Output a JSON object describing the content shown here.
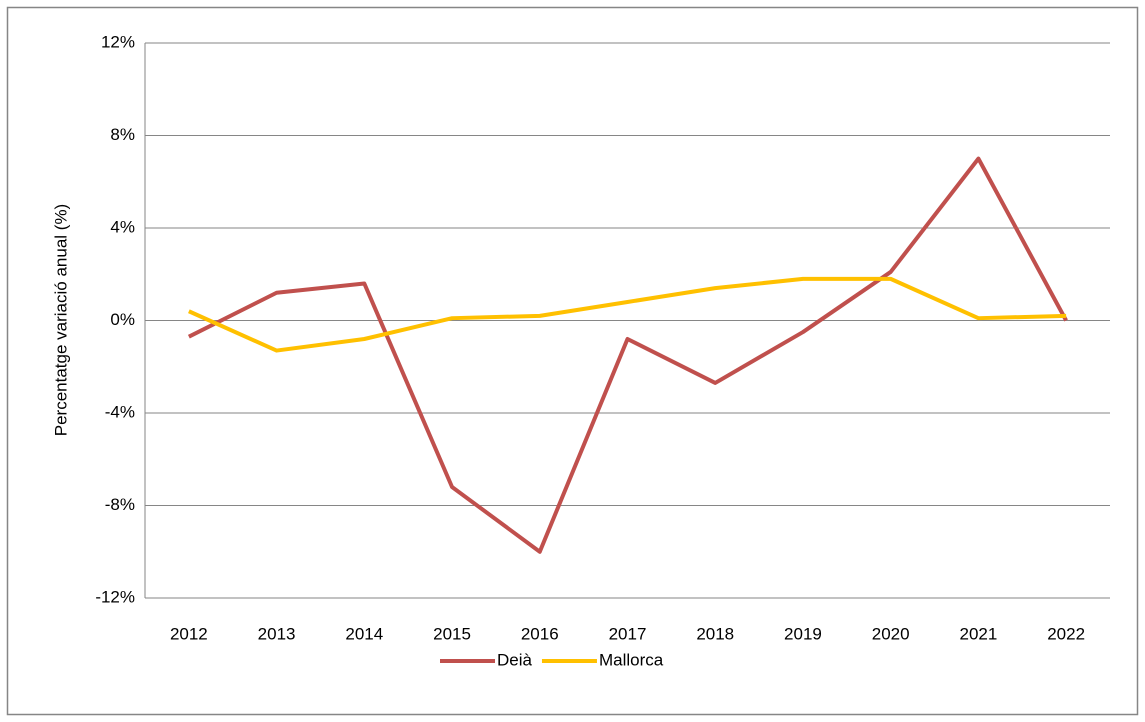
{
  "chart_data": {
    "type": "line",
    "y_label": "Percentatge variació anual (%)",
    "categories": [
      "2012",
      "2013",
      "2014",
      "2015",
      "2016",
      "2017",
      "2018",
      "2019",
      "2020",
      "2021",
      "2022"
    ],
    "series": [
      {
        "name": "Deià",
        "color": "#c0504d",
        "values": [
          -0.7,
          1.2,
          1.6,
          -7.2,
          -10.0,
          -0.8,
          -2.7,
          -0.5,
          2.1,
          7.0,
          0.0
        ]
      },
      {
        "name": "Mallorca",
        "color": "#ffc000",
        "values": [
          0.4,
          -1.3,
          -0.8,
          0.1,
          0.2,
          0.8,
          1.4,
          1.8,
          1.8,
          0.1,
          0.2
        ]
      }
    ],
    "ylim": [
      -12,
      12
    ],
    "yticks": [
      {
        "value": -12,
        "label": "-12%"
      },
      {
        "value": -8,
        "label": "-8%"
      },
      {
        "value": -4,
        "label": "-4%"
      },
      {
        "value": 0,
        "label": "0%"
      },
      {
        "value": 4,
        "label": "4%"
      },
      {
        "value": 8,
        "label": "8%"
      },
      {
        "value": 12,
        "label": "12%"
      }
    ],
    "grid": true,
    "legend": "bottom"
  }
}
